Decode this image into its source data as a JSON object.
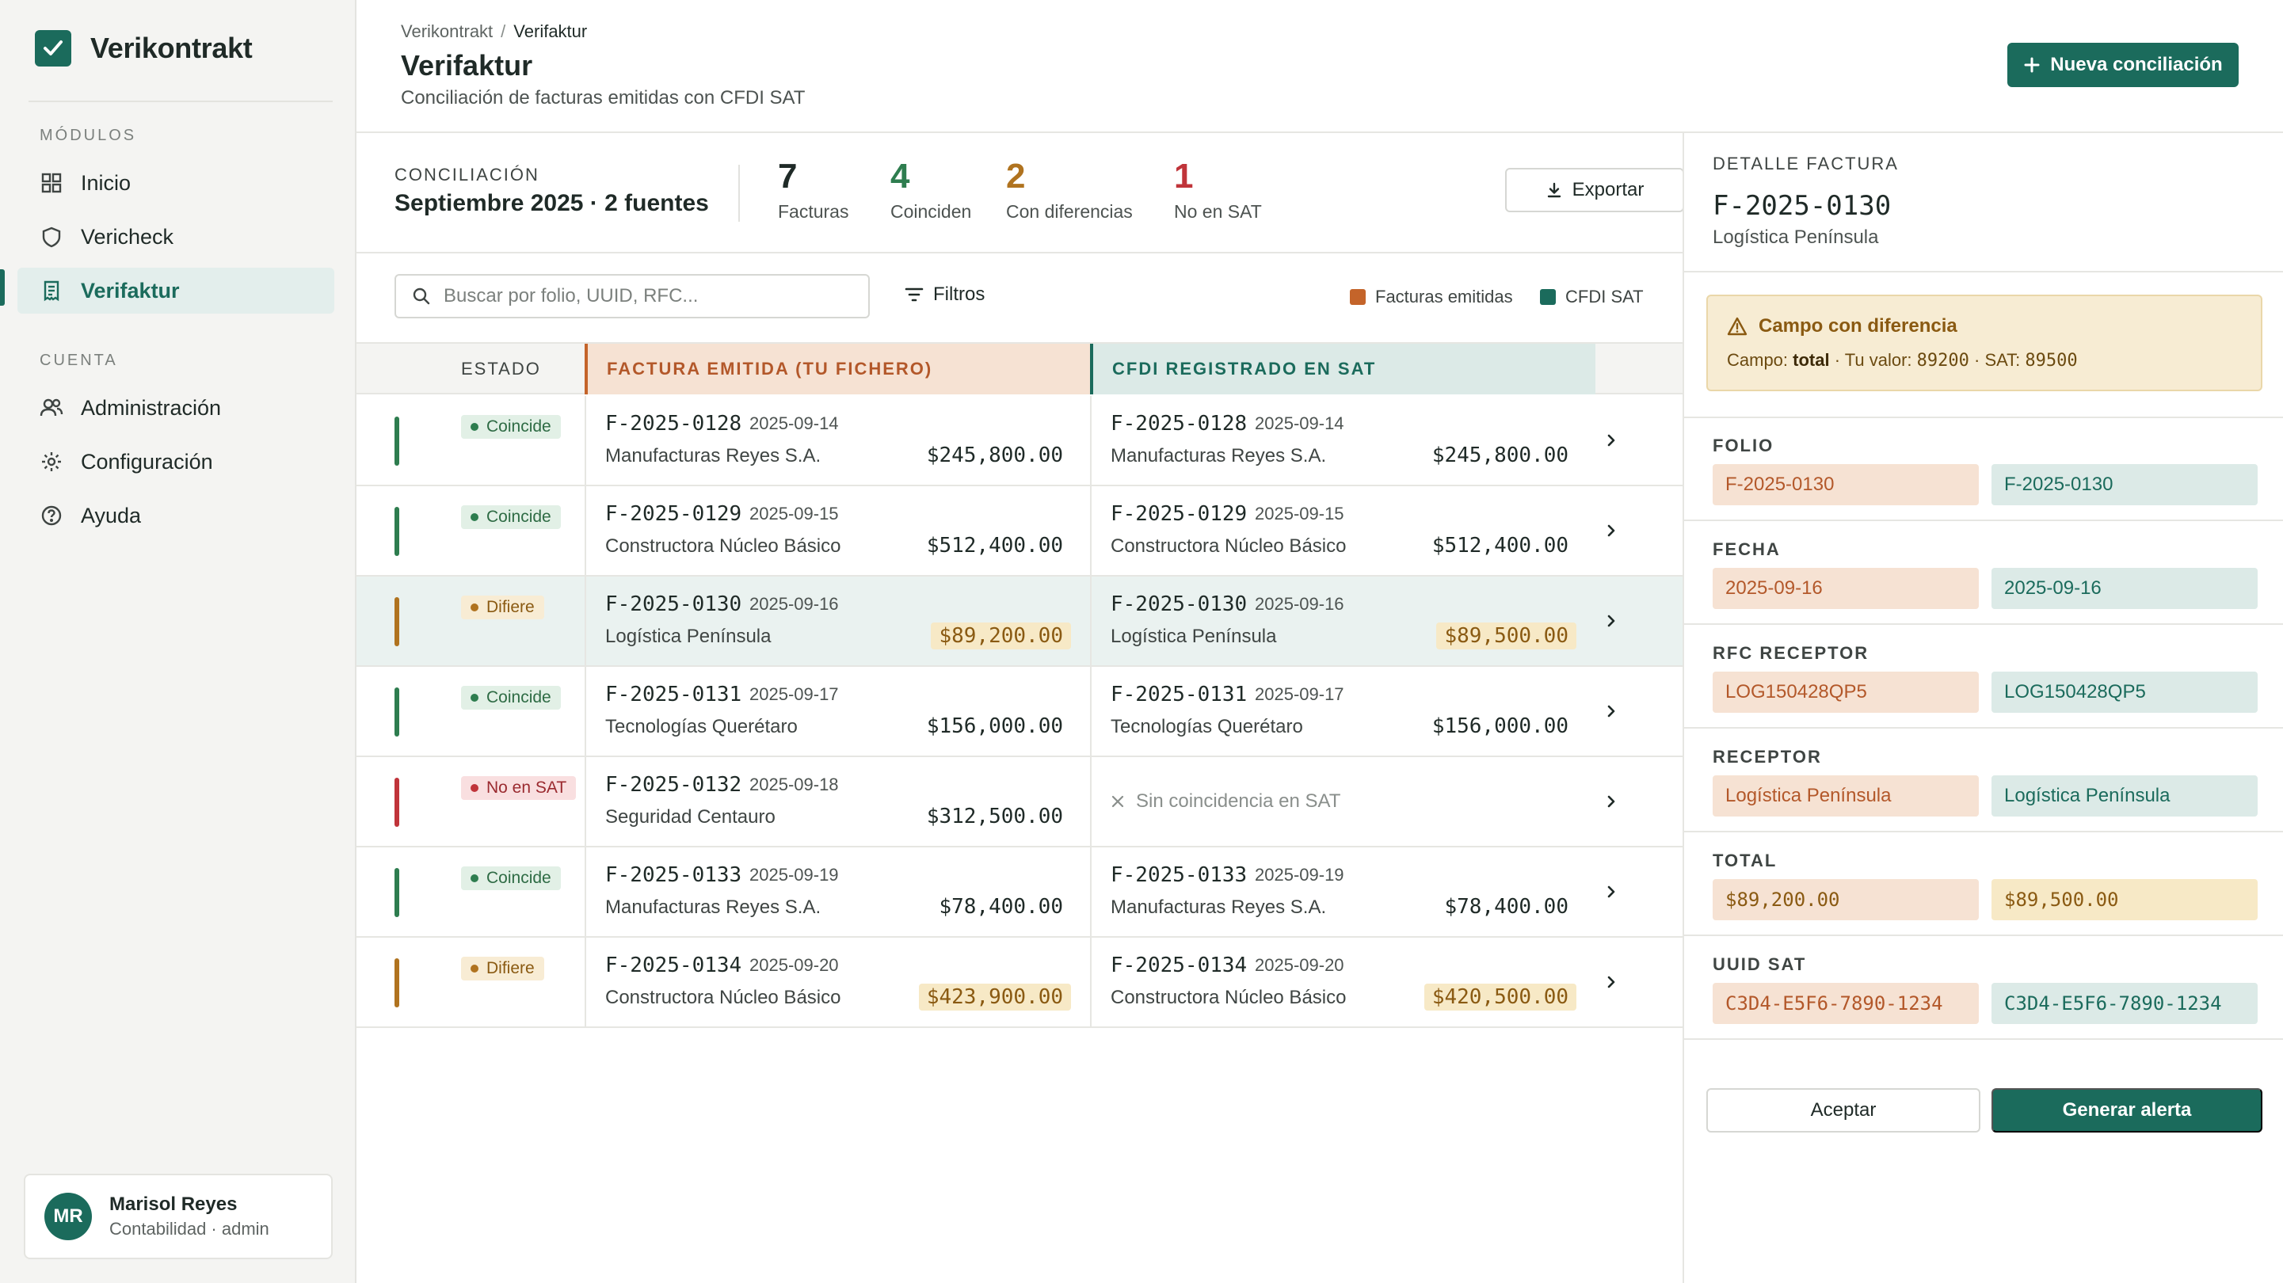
{
  "app": {
    "name": "Verikontrakt"
  },
  "colors": {
    "primary": "#1b6b5c",
    "factura": "#c4642a",
    "cfdi": "#1b6b5c",
    "match": "#2e7d4f",
    "differ": "#b0731f",
    "missing": "#c0343a"
  },
  "sidebar": {
    "modules_label": "MÓDULOS",
    "modules": [
      {
        "label": "Inicio",
        "icon": "grid-icon"
      },
      {
        "label": "Vericheck",
        "icon": "shield-icon"
      },
      {
        "label": "Verifaktur",
        "icon": "receipt-icon",
        "active": true
      }
    ],
    "account_label": "CUENTA",
    "account": [
      {
        "label": "Administración",
        "icon": "users-icon"
      },
      {
        "label": "Configuración",
        "icon": "gear-icon"
      },
      {
        "label": "Ayuda",
        "icon": "help-icon"
      }
    ],
    "user": {
      "initials": "MR",
      "name": "Marisol Reyes",
      "role": "Contabilidad · admin"
    }
  },
  "header": {
    "breadcrumb": [
      "Verikontrakt",
      "Verifaktur"
    ],
    "title": "Verifaktur",
    "subtitle": "Conciliación de facturas emitidas con CFDI SAT",
    "new_button": "Nueva conciliación"
  },
  "summary": {
    "label": "CONCILIACIÓN",
    "value": "Septiembre 2025 · 2 fuentes",
    "stats": [
      {
        "num": "7",
        "label": "Facturas"
      },
      {
        "num": "4",
        "label": "Coinciden"
      },
      {
        "num": "2",
        "label": "Con diferencias"
      },
      {
        "num": "1",
        "label": "No en SAT"
      }
    ],
    "export_button": "Exportar"
  },
  "toolbar": {
    "search_placeholder": "Buscar por folio, UUID, RFC...",
    "filters": "Filtros",
    "legend": [
      "Facturas emitidas",
      "CFDI SAT"
    ]
  },
  "table": {
    "headers": {
      "estado": "ESTADO",
      "factura": "FACTURA EMITIDA (TU FICHERO)",
      "cfdi": "CFDI REGISTRADO EN SAT"
    },
    "no_match_text": "Sin coincidencia en SAT",
    "rows": [
      {
        "status": "Coincide",
        "kind": "match",
        "f_folio": "F-2025-0128",
        "f_date": "2025-09-14",
        "f_name": "Manufacturas Reyes S.A.",
        "f_amount": "$245,800.00",
        "s_folio": "F-2025-0128",
        "s_date": "2025-09-14",
        "s_name": "Manufacturas Reyes S.A.",
        "s_amount": "$245,800.00"
      },
      {
        "status": "Coincide",
        "kind": "match",
        "f_folio": "F-2025-0129",
        "f_date": "2025-09-15",
        "f_name": "Constructora Núcleo Básico",
        "f_amount": "$512,400.00",
        "s_folio": "F-2025-0129",
        "s_date": "2025-09-15",
        "s_name": "Constructora Núcleo Básico",
        "s_amount": "$512,400.00"
      },
      {
        "status": "Difiere",
        "kind": "differ",
        "selected": true,
        "f_folio": "F-2025-0130",
        "f_date": "2025-09-16",
        "f_name": "Logística Península",
        "f_amount": "$89,200.00",
        "s_folio": "F-2025-0130",
        "s_date": "2025-09-16",
        "s_name": "Logística Península",
        "s_amount": "$89,500.00"
      },
      {
        "status": "Coincide",
        "kind": "match",
        "f_folio": "F-2025-0131",
        "f_date": "2025-09-17",
        "f_name": "Tecnologías Querétaro",
        "f_amount": "$156,000.00",
        "s_folio": "F-2025-0131",
        "s_date": "2025-09-17",
        "s_name": "Tecnologías Querétaro",
        "s_amount": "$156,000.00"
      },
      {
        "status": "No en SAT",
        "kind": "missing",
        "f_folio": "F-2025-0132",
        "f_date": "2025-09-18",
        "f_name": "Seguridad Centauro",
        "f_amount": "$312,500.00"
      },
      {
        "status": "Coincide",
        "kind": "match",
        "f_folio": "F-2025-0133",
        "f_date": "2025-09-19",
        "f_name": "Manufacturas Reyes S.A.",
        "f_amount": "$78,400.00",
        "s_folio": "F-2025-0133",
        "s_date": "2025-09-19",
        "s_name": "Manufacturas Reyes S.A.",
        "s_amount": "$78,400.00"
      },
      {
        "status": "Difiere",
        "kind": "differ",
        "f_folio": "F-2025-0134",
        "f_date": "2025-09-20",
        "f_name": "Constructora Núcleo Básico",
        "f_amount": "$423,900.00",
        "s_folio": "F-2025-0134",
        "s_date": "2025-09-20",
        "s_name": "Constructora Núcleo Básico",
        "s_amount": "$420,500.00"
      }
    ]
  },
  "detail": {
    "label": "DETALLE FACTURA",
    "folio": "F-2025-0130",
    "company": "Logística Península",
    "alert": {
      "title": "Campo con diferencia",
      "prefix": "Campo: ",
      "field": "total",
      "tu_valor": " · Tu valor: ",
      "tu_num": "89200",
      "sat": " · SAT: ",
      "sat_num": "89500"
    },
    "fields": [
      {
        "label": "FOLIO",
        "f": "F-2025-0130",
        "s": "F-2025-0130"
      },
      {
        "label": "FECHA",
        "f": "2025-09-16",
        "s": "2025-09-16"
      },
      {
        "label": "RFC RECEPTOR",
        "f": "LOG150428QP5",
        "s": "LOG150428QP5"
      },
      {
        "label": "RECEPTOR",
        "f": "Logística Península",
        "s": "Logística Península"
      },
      {
        "label": "TOTAL",
        "f": "$89,200.00",
        "s": "$89,500.00",
        "diff": true,
        "mono": true
      },
      {
        "label": "UUID SAT",
        "f": "C3D4-E5F6-7890-1234",
        "s": "C3D4-E5F6-7890-1234",
        "mono": true
      }
    ],
    "accept_button": "Aceptar",
    "alert_button": "Generar alerta"
  }
}
